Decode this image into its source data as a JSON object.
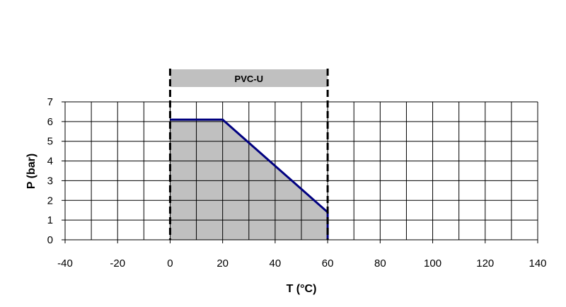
{
  "chart_data": {
    "type": "area",
    "title": "",
    "xlabel": "T (°C)",
    "ylabel": "P (bar)",
    "xlim": [
      -40,
      140
    ],
    "ylim": [
      0,
      7
    ],
    "x_ticks": [
      -40,
      -20,
      0,
      20,
      40,
      60,
      80,
      100,
      120,
      140
    ],
    "y_ticks": [
      0,
      1,
      2,
      3,
      4,
      5,
      6,
      7
    ],
    "x_minor_step": 10,
    "grid": true,
    "band": {
      "label": "PVC-U",
      "x_range": [
        0,
        60
      ]
    },
    "boundary_dashed_lines_x": [
      0,
      60
    ],
    "series": [
      {
        "x": [
          0,
          20,
          60,
          60
        ],
        "y": [
          6.1,
          6.1,
          1.4,
          0
        ]
      }
    ],
    "colors": {
      "line": "#000080",
      "fill": "#c0c0c0",
      "band": "#c0c0c0",
      "grid": "#000000"
    }
  }
}
